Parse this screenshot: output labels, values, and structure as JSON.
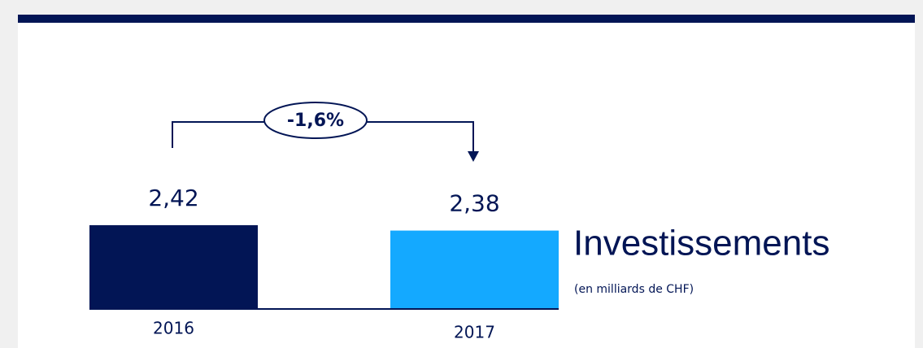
{
  "chart_data": {
    "type": "bar",
    "title": "Investissements",
    "subtitle": "(en milliards de CHF)",
    "annotation": "-1,6%",
    "categories": [
      "2016",
      "2017"
    ],
    "values": [
      2.42,
      2.38
    ],
    "value_labels": [
      "2,42",
      "2,38"
    ],
    "colors": [
      "#021555",
      "#14a9ff"
    ],
    "ylim": [
      1.8,
      2.6
    ]
  }
}
